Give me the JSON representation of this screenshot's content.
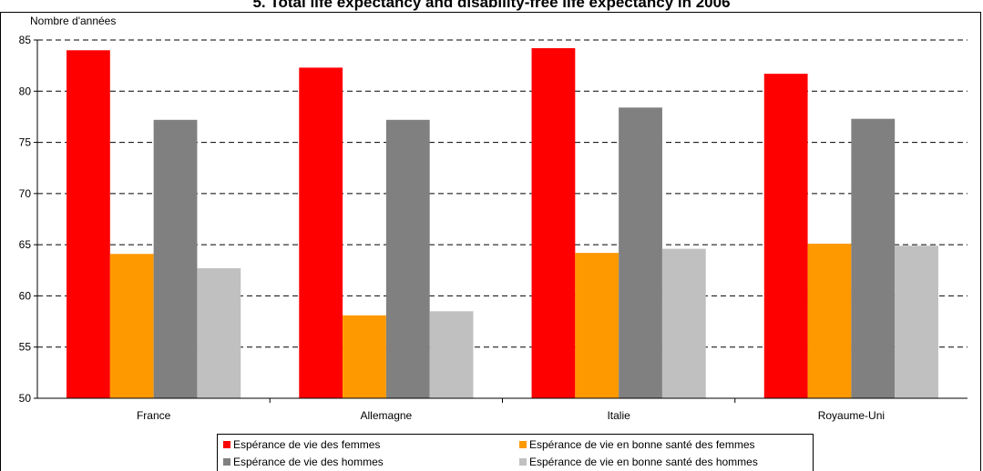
{
  "chart_data": {
    "type": "bar",
    "title": "5. Total life expectancy and disability-free life expectancy in 2006",
    "ylabel": "Nombre d'années",
    "xlabel": "",
    "ylim": [
      50,
      85
    ],
    "yticks": [
      50,
      55,
      60,
      65,
      70,
      75,
      80,
      85
    ],
    "grid": true,
    "legend_position": "bottom",
    "categories": [
      "France",
      "Allemagne",
      "Italie",
      "Royaume-Uni"
    ],
    "series": [
      {
        "name": "Espérance de vie des femmes",
        "color": "#ff0000",
        "values": [
          84.0,
          82.3,
          84.2,
          81.7
        ]
      },
      {
        "name": "Espérance de vie en bonne santé des femmes",
        "color": "#ff9900",
        "values": [
          64.1,
          58.1,
          64.2,
          65.1
        ]
      },
      {
        "name": "Espérance de vie des hommes",
        "color": "#808080",
        "values": [
          77.2,
          77.2,
          78.4,
          77.3
        ]
      },
      {
        "name": "Espérance de vie en bonne santé des hommes",
        "color": "#c0c0c0",
        "values": [
          62.7,
          58.5,
          64.6,
          64.9
        ]
      }
    ]
  }
}
